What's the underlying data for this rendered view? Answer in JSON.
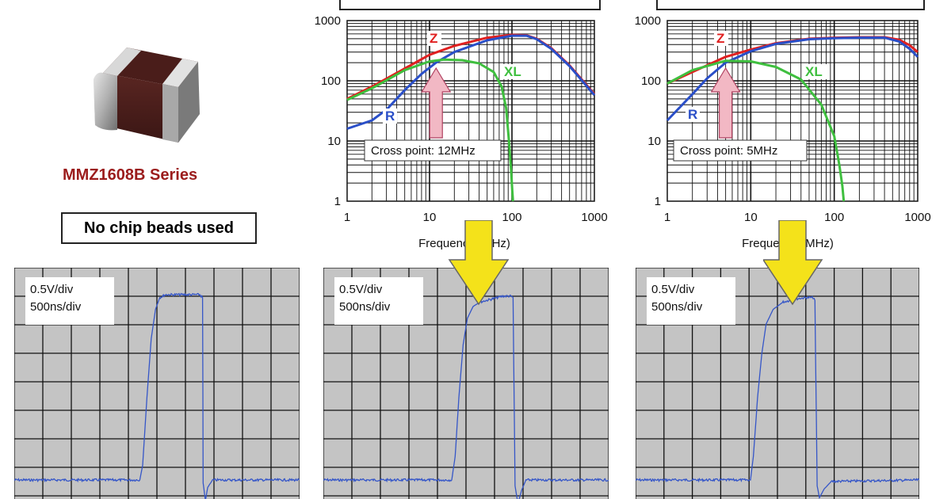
{
  "product": {
    "series_label": "MMZ1608B Series",
    "colors": {
      "body": "#4a1d1a",
      "terminal": "#b5b5b5",
      "label": "#9b1c1c"
    }
  },
  "no_beads_label": "No chip beads used",
  "colors": {
    "Z": "#e02020",
    "R": "#2a4fc8",
    "XL": "#3fbf3f",
    "arrow_pink": "#f2b8c4",
    "arrow_yellow": "#f4e21a",
    "scope_bg": "#c4c4c4",
    "scope_trace": "#3556c8"
  },
  "chart_data": [
    {
      "type": "line",
      "title": "",
      "xlabel": "Frequency (MHz)",
      "ylabel": "",
      "log_x": true,
      "log_y": true,
      "xlim": [
        1,
        1000
      ],
      "ylim": [
        1,
        1000
      ],
      "x_ticks": [
        "1",
        "10",
        "100",
        "1000"
      ],
      "y_ticks": [
        "1000",
        "100",
        "10",
        "1"
      ],
      "grid": true,
      "annotation": "Cross point: 12MHz",
      "series": [
        {
          "name": "Z",
          "points": [
            [
              1,
              50
            ],
            [
              2,
              80
            ],
            [
              5,
              160
            ],
            [
              10,
              270
            ],
            [
              20,
              380
            ],
            [
              50,
              520
            ],
            [
              100,
              580
            ],
            [
              150,
              570
            ],
            [
              200,
              500
            ],
            [
              300,
              350
            ],
            [
              500,
              180
            ],
            [
              1000,
              60
            ]
          ]
        },
        {
          "name": "R",
          "points": [
            [
              1,
              16
            ],
            [
              2,
              22
            ],
            [
              3,
              33
            ],
            [
              5,
              70
            ],
            [
              8,
              130
            ],
            [
              12,
              200
            ],
            [
              20,
              300
            ],
            [
              50,
              470
            ],
            [
              100,
              560
            ],
            [
              150,
              560
            ],
            [
              200,
              490
            ],
            [
              300,
              340
            ],
            [
              500,
              175
            ],
            [
              1000,
              58
            ]
          ]
        },
        {
          "name": "XL",
          "points": [
            [
              1,
              48
            ],
            [
              2,
              75
            ],
            [
              5,
              150
            ],
            [
              10,
              210
            ],
            [
              15,
              225
            ],
            [
              25,
              220
            ],
            [
              40,
              195
            ],
            [
              60,
              140
            ],
            [
              75,
              80
            ],
            [
              85,
              35
            ],
            [
              92,
              10
            ],
            [
              98,
              3
            ],
            [
              101,
              1.5
            ],
            [
              103,
              1
            ]
          ]
        }
      ]
    },
    {
      "type": "line",
      "title": "",
      "xlabel": "Frequency (MHz)",
      "ylabel": "",
      "log_x": true,
      "log_y": true,
      "xlim": [
        1,
        1000
      ],
      "ylim": [
        1,
        1000
      ],
      "x_ticks": [
        "1",
        "10",
        "100",
        "1000"
      ],
      "y_ticks": [
        "1000",
        "100",
        "10",
        "1"
      ],
      "grid": true,
      "annotation": "Cross point: 5MHz",
      "series": [
        {
          "name": "Z",
          "points": [
            [
              1,
              90
            ],
            [
              2,
              140
            ],
            [
              5,
              250
            ],
            [
              10,
              330
            ],
            [
              20,
              420
            ],
            [
              50,
              500
            ],
            [
              100,
              520
            ],
            [
              200,
              530
            ],
            [
              400,
              530
            ],
            [
              600,
              480
            ],
            [
              800,
              390
            ],
            [
              1000,
              300
            ]
          ]
        },
        {
          "name": "R",
          "points": [
            [
              1,
              22
            ],
            [
              2,
              60
            ],
            [
              3,
              110
            ],
            [
              5,
              200
            ],
            [
              10,
              310
            ],
            [
              20,
              410
            ],
            [
              50,
              490
            ],
            [
              100,
              510
            ],
            [
              200,
              520
            ],
            [
              400,
              520
            ],
            [
              600,
              450
            ],
            [
              800,
              340
            ],
            [
              1000,
              250
            ]
          ]
        },
        {
          "name": "XL",
          "points": [
            [
              1,
              90
            ],
            [
              2,
              150
            ],
            [
              5,
              215
            ],
            [
              10,
              210
            ],
            [
              20,
              170
            ],
            [
              40,
              105
            ],
            [
              70,
              40
            ],
            [
              100,
              12
            ],
            [
              115,
              4
            ],
            [
              125,
              1.8
            ],
            [
              130,
              1
            ]
          ]
        }
      ]
    },
    {
      "type": "line",
      "title": "",
      "scale_labels": [
        "0.5V/div",
        "500ns/div"
      ],
      "xlim": [
        0,
        10
      ],
      "ylim": [
        0,
        8
      ],
      "grid": true,
      "x_unit": "div",
      "y_unit": "div",
      "series": [
        {
          "name": "",
          "points": [
            [
              0,
              0.7
            ],
            [
              4.4,
              0.7
            ],
            [
              4.5,
              1.2
            ],
            [
              4.65,
              3.5
            ],
            [
              4.8,
              5.5
            ],
            [
              4.95,
              6.5
            ],
            [
              5.1,
              6.9
            ],
            [
              5.3,
              7.0
            ],
            [
              6.5,
              7.0
            ],
            [
              6.6,
              6.9
            ],
            [
              6.62,
              0.6
            ],
            [
              6.7,
              0.0
            ],
            [
              6.78,
              0.45
            ],
            [
              6.95,
              0.7
            ],
            [
              10,
              0.7
            ]
          ]
        }
      ]
    },
    {
      "type": "line",
      "title": "",
      "scale_labels": [
        "0.5V/div",
        "500ns/div"
      ],
      "xlim": [
        0,
        10
      ],
      "ylim": [
        0,
        8
      ],
      "grid": true,
      "x_unit": "div",
      "y_unit": "div",
      "series": [
        {
          "name": "",
          "points": [
            [
              0,
              0.7
            ],
            [
              4.5,
              0.7
            ],
            [
              4.62,
              1.5
            ],
            [
              4.75,
              3.5
            ],
            [
              4.9,
              5.3
            ],
            [
              5.05,
              6.2
            ],
            [
              5.25,
              6.6
            ],
            [
              5.5,
              6.75
            ],
            [
              5.9,
              6.85
            ],
            [
              6.3,
              6.95
            ],
            [
              6.55,
              6.95
            ],
            [
              6.65,
              6.9
            ],
            [
              6.72,
              0.5
            ],
            [
              6.82,
              -0.1
            ],
            [
              6.95,
              0.35
            ],
            [
              7.1,
              0.7
            ],
            [
              10,
              0.7
            ]
          ]
        }
      ]
    },
    {
      "type": "line",
      "title": "",
      "scale_labels": [
        "0.5V/div",
        "500ns/div"
      ],
      "xlim": [
        0,
        10
      ],
      "ylim": [
        0,
        8
      ],
      "grid": true,
      "x_unit": "div",
      "y_unit": "div",
      "series": [
        {
          "name": "",
          "points": [
            [
              0,
              0.7
            ],
            [
              4.05,
              0.7
            ],
            [
              4.15,
              1.5
            ],
            [
              4.3,
              3.5
            ],
            [
              4.45,
              5.0
            ],
            [
              4.6,
              6.0
            ],
            [
              4.85,
              6.5
            ],
            [
              5.2,
              6.75
            ],
            [
              5.6,
              6.85
            ],
            [
              6.0,
              6.9
            ],
            [
              6.25,
              6.9
            ],
            [
              6.32,
              6.8
            ],
            [
              6.4,
              0.5
            ],
            [
              6.48,
              0.1
            ],
            [
              6.65,
              0.4
            ],
            [
              6.9,
              0.65
            ],
            [
              10,
              0.7
            ]
          ]
        }
      ]
    }
  ]
}
